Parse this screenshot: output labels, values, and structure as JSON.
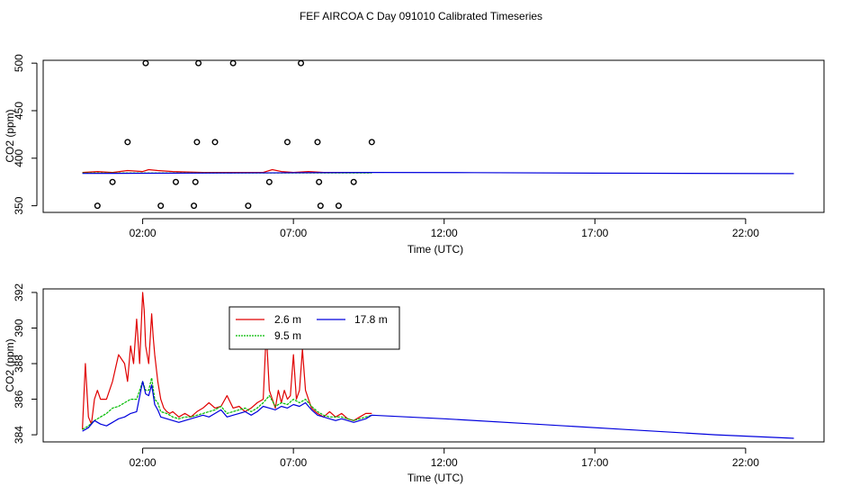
{
  "title": "FEF AIRCOA C  Day 091010  Calibrated Timeseries",
  "chart_data": [
    {
      "id": "top",
      "type": "scatter+line",
      "xlabel": "Time (UTC)",
      "ylabel": "CO2 (ppm)",
      "xlim": [
        -1.3,
        24.6
      ],
      "ylim": [
        343,
        503
      ],
      "xticks": [
        2,
        7,
        12,
        17,
        22
      ],
      "xtick_labels": [
        "02:00",
        "07:00",
        "12:00",
        "17:00",
        "22:00"
      ],
      "yticks": [
        350,
        400,
        450,
        500
      ],
      "ytick_labels": [
        "350",
        "400",
        "450",
        "500"
      ],
      "points": [
        {
          "x": 0.5,
          "y": 350
        },
        {
          "x": 1.0,
          "y": 375
        },
        {
          "x": 1.5,
          "y": 417
        },
        {
          "x": 2.1,
          "y": 500
        },
        {
          "x": 2.6,
          "y": 350
        },
        {
          "x": 3.1,
          "y": 375
        },
        {
          "x": 3.7,
          "y": 350
        },
        {
          "x": 3.75,
          "y": 375
        },
        {
          "x": 3.8,
          "y": 417
        },
        {
          "x": 3.85,
          "y": 500
        },
        {
          "x": 4.4,
          "y": 417
        },
        {
          "x": 5.0,
          "y": 500
        },
        {
          "x": 5.5,
          "y": 350
        },
        {
          "x": 6.2,
          "y": 375
        },
        {
          "x": 6.8,
          "y": 417
        },
        {
          "x": 7.25,
          "y": 500
        },
        {
          "x": 7.8,
          "y": 417
        },
        {
          "x": 7.85,
          "y": 375
        },
        {
          "x": 7.9,
          "y": 350
        },
        {
          "x": 8.5,
          "y": 350
        },
        {
          "x": 9.0,
          "y": 375
        },
        {
          "x": 9.6,
          "y": 417
        }
      ],
      "series": [
        {
          "name": "2.6 m",
          "color": "#e00000",
          "x": [
            0,
            0.5,
            1,
            1.5,
            2,
            2.2,
            2.5,
            3,
            4,
            5,
            6,
            6.3,
            6.6,
            7,
            7.5,
            8,
            9,
            9.6
          ],
          "y": [
            385,
            386,
            385,
            387,
            386,
            388,
            387,
            386,
            385,
            385,
            385,
            388,
            386,
            385,
            386,
            385,
            385,
            385
          ]
        },
        {
          "name": "9.5 m",
          "color": "#00bb00",
          "x": [
            0,
            9.6
          ],
          "y": [
            384.5,
            384.5
          ]
        },
        {
          "name": "17.8 m",
          "color": "#0000dd",
          "x": [
            0,
            5,
            9.6,
            13,
            17,
            20,
            23.6
          ],
          "y": [
            384,
            384.5,
            385,
            384.8,
            384.3,
            384.1,
            383.8
          ]
        }
      ]
    },
    {
      "id": "bottom",
      "type": "line",
      "xlabel": "Time (UTC)",
      "ylabel": "CO2 (ppm)",
      "xlim": [
        -1.3,
        24.6
      ],
      "ylim": [
        383.6,
        392.2
      ],
      "xticks": [
        2,
        7,
        12,
        17,
        22
      ],
      "xtick_labels": [
        "02:00",
        "07:00",
        "12:00",
        "17:00",
        "22:00"
      ],
      "yticks": [
        384,
        386,
        388,
        390,
        392
      ],
      "ytick_labels": [
        "384",
        "386",
        "388",
        "390",
        "392"
      ],
      "series": [
        {
          "name": "2.6 m",
          "color": "#e00000",
          "x": [
            0,
            0.1,
            0.2,
            0.3,
            0.4,
            0.5,
            0.6,
            0.8,
            1.0,
            1.2,
            1.4,
            1.5,
            1.6,
            1.7,
            1.8,
            1.9,
            2.0,
            2.05,
            2.1,
            2.2,
            2.3,
            2.35,
            2.4,
            2.5,
            2.6,
            2.7,
            2.8,
            2.9,
            3.0,
            3.2,
            3.4,
            3.6,
            3.8,
            4.0,
            4.2,
            4.4,
            4.6,
            4.8,
            5.0,
            5.2,
            5.4,
            5.6,
            5.8,
            6.0,
            6.1,
            6.2,
            6.3,
            6.4,
            6.5,
            6.6,
            6.7,
            6.8,
            6.9,
            7.0,
            7.1,
            7.2,
            7.3,
            7.4,
            7.5,
            7.6,
            7.8,
            8.0,
            8.2,
            8.4,
            8.6,
            8.8,
            9.0,
            9.2,
            9.4,
            9.6
          ],
          "y": [
            384.3,
            388.0,
            385.0,
            384.6,
            386.0,
            386.5,
            386.0,
            386.0,
            387.0,
            388.5,
            388.0,
            387.0,
            389.0,
            388.0,
            390.5,
            388.0,
            392.0,
            391.0,
            389.0,
            388.0,
            390.8,
            389.5,
            388.5,
            387.0,
            386.0,
            385.5,
            385.3,
            385.2,
            385.3,
            385.0,
            385.2,
            385.0,
            385.3,
            385.5,
            385.8,
            385.5,
            385.6,
            386.2,
            385.5,
            385.6,
            385.3,
            385.5,
            385.8,
            386.0,
            389.8,
            386.5,
            386.0,
            385.5,
            386.5,
            385.8,
            386.5,
            386.0,
            386.2,
            388.5,
            386.0,
            386.5,
            388.8,
            386.5,
            386.0,
            385.5,
            385.2,
            385.0,
            385.3,
            385.0,
            385.2,
            384.9,
            384.8,
            385.0,
            385.2,
            385.2
          ]
        },
        {
          "name": "9.5 m",
          "color": "#00bb00",
          "x": [
            0,
            0.2,
            0.4,
            0.6,
            0.8,
            1.0,
            1.2,
            1.4,
            1.6,
            1.8,
            2.0,
            2.1,
            2.2,
            2.3,
            2.4,
            2.5,
            2.6,
            2.8,
            3.0,
            3.2,
            3.4,
            3.6,
            3.8,
            4.0,
            4.2,
            4.4,
            4.6,
            4.8,
            5.0,
            5.2,
            5.4,
            5.6,
            5.8,
            6.0,
            6.2,
            6.4,
            6.6,
            6.8,
            7.0,
            7.2,
            7.4,
            7.6,
            7.8,
            8.0,
            8.2,
            8.4,
            8.6,
            8.8,
            9.0,
            9.2,
            9.4,
            9.6
          ],
          "y": [
            384.3,
            384.5,
            384.8,
            385.0,
            385.2,
            385.5,
            385.6,
            385.8,
            386.0,
            386.0,
            387.0,
            386.5,
            386.5,
            387.2,
            386.0,
            385.8,
            385.3,
            385.2,
            385.0,
            384.9,
            385.0,
            385.0,
            385.1,
            385.2,
            385.3,
            385.4,
            385.6,
            385.2,
            385.3,
            385.4,
            385.5,
            385.3,
            385.5,
            385.8,
            386.2,
            385.6,
            385.8,
            385.7,
            386.0,
            385.8,
            386.0,
            385.6,
            385.3,
            385.1,
            385.0,
            385.0,
            385.0,
            384.9,
            384.8,
            384.9,
            385.0,
            385.1
          ]
        },
        {
          "name": "17.8 m",
          "color": "#0000dd",
          "x": [
            0,
            0.2,
            0.4,
            0.6,
            0.8,
            1.0,
            1.2,
            1.4,
            1.6,
            1.8,
            2.0,
            2.1,
            2.2,
            2.3,
            2.4,
            2.5,
            2.6,
            2.8,
            3.0,
            3.2,
            3.4,
            3.6,
            3.8,
            4.0,
            4.2,
            4.4,
            4.6,
            4.8,
            5.0,
            5.2,
            5.4,
            5.6,
            5.8,
            6.0,
            6.2,
            6.4,
            6.6,
            6.8,
            7.0,
            7.2,
            7.4,
            7.6,
            7.8,
            8.0,
            8.2,
            8.4,
            8.6,
            8.8,
            9.0,
            9.2,
            9.4,
            9.6,
            12,
            15,
            18,
            21,
            23.6
          ],
          "y": [
            384.2,
            384.4,
            384.8,
            384.6,
            384.5,
            384.7,
            384.9,
            385.0,
            385.2,
            385.3,
            387.0,
            386.3,
            386.2,
            386.8,
            385.7,
            385.4,
            385.0,
            384.9,
            384.8,
            384.7,
            384.8,
            384.9,
            385.0,
            385.1,
            385.0,
            385.2,
            385.4,
            385.0,
            385.1,
            385.2,
            385.3,
            385.1,
            385.3,
            385.6,
            385.5,
            385.4,
            385.6,
            385.5,
            385.7,
            385.6,
            385.8,
            385.4,
            385.1,
            385.0,
            384.9,
            384.8,
            384.9,
            384.8,
            384.7,
            384.8,
            384.9,
            385.1,
            384.9,
            384.6,
            384.3,
            384.0,
            383.8
          ]
        }
      ]
    }
  ],
  "legend": {
    "entries": [
      {
        "label": "2.6 m",
        "color": "#e00000"
      },
      {
        "label": "17.8 m",
        "color": "#0000dd"
      },
      {
        "label": "9.5 m",
        "color": "#00bb00"
      }
    ]
  }
}
